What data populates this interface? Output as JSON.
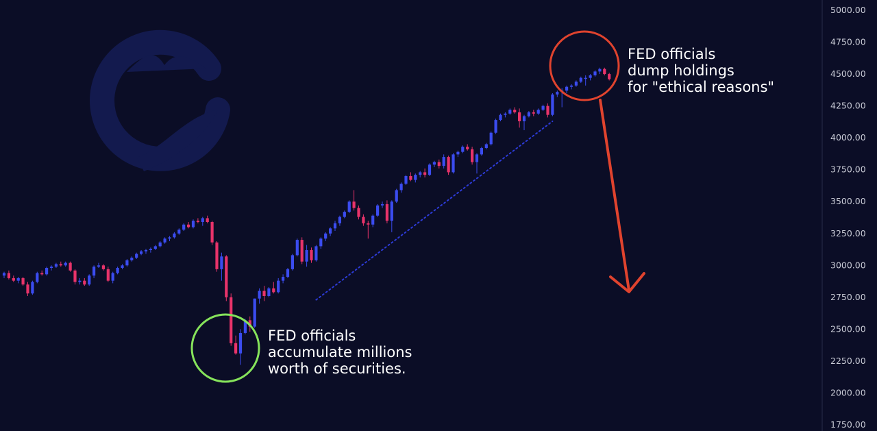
{
  "chart_data": {
    "type": "candlestick",
    "y_axis": {
      "position": "right",
      "range": [
        1750,
        5000
      ],
      "ticks": [
        "5000.00",
        "4750.00",
        "4500.00",
        "4250.00",
        "4000.00",
        "3750.00",
        "3500.00",
        "3250.00",
        "3000.00",
        "2750.00",
        "2500.00",
        "2250.00",
        "2000.00",
        "1750.00"
      ]
    },
    "colors": {
      "background": "#0b0d26",
      "up": "#3b4cf0",
      "down": "#e8336a",
      "trendline": "#2d3bd8",
      "circle_low": "#86e35b",
      "circle_high": "#e0432e",
      "arrow": "#e0432e",
      "logo": "#131a4e"
    },
    "candles": [
      [
        2920,
        2950,
        2900,
        2940
      ],
      [
        2940,
        2960,
        2890,
        2900
      ],
      [
        2900,
        2920,
        2870,
        2880
      ],
      [
        2880,
        2910,
        2860,
        2900
      ],
      [
        2900,
        2910,
        2840,
        2850
      ],
      [
        2850,
        2870,
        2760,
        2780
      ],
      [
        2780,
        2880,
        2770,
        2870
      ],
      [
        2870,
        2950,
        2860,
        2940
      ],
      [
        2940,
        2960,
        2920,
        2930
      ],
      [
        2930,
        2990,
        2920,
        2980
      ],
      [
        2980,
        3000,
        2960,
        2990
      ],
      [
        2990,
        3020,
        2980,
        3010
      ],
      [
        3010,
        3030,
        2990,
        3000
      ],
      [
        3000,
        3030,
        2990,
        3020
      ],
      [
        3020,
        3030,
        2950,
        2960
      ],
      [
        2960,
        2970,
        2850,
        2870
      ],
      [
        2870,
        2900,
        2850,
        2880
      ],
      [
        2880,
        2900,
        2840,
        2850
      ],
      [
        2850,
        2930,
        2840,
        2920
      ],
      [
        2920,
        3000,
        2900,
        2990
      ],
      [
        2990,
        3020,
        2980,
        3000
      ],
      [
        3000,
        3010,
        2960,
        2970
      ],
      [
        2970,
        2990,
        2870,
        2880
      ],
      [
        2880,
        2950,
        2860,
        2940
      ],
      [
        2940,
        2990,
        2930,
        2980
      ],
      [
        2980,
        3010,
        2970,
        3000
      ],
      [
        3000,
        3050,
        2990,
        3040
      ],
      [
        3040,
        3070,
        3030,
        3060
      ],
      [
        3060,
        3100,
        3050,
        3090
      ],
      [
        3090,
        3120,
        3080,
        3110
      ],
      [
        3110,
        3130,
        3090,
        3120
      ],
      [
        3120,
        3140,
        3100,
        3130
      ],
      [
        3130,
        3160,
        3120,
        3150
      ],
      [
        3150,
        3190,
        3140,
        3180
      ],
      [
        3180,
        3220,
        3170,
        3210
      ],
      [
        3210,
        3230,
        3190,
        3220
      ],
      [
        3220,
        3260,
        3210,
        3250
      ],
      [
        3250,
        3290,
        3240,
        3280
      ],
      [
        3280,
        3330,
        3270,
        3320
      ],
      [
        3320,
        3340,
        3290,
        3300
      ],
      [
        3300,
        3360,
        3290,
        3350
      ],
      [
        3350,
        3370,
        3330,
        3340
      ],
      [
        3340,
        3380,
        3310,
        3370
      ],
      [
        3370,
        3390,
        3330,
        3340
      ],
      [
        3340,
        3350,
        3160,
        3180
      ],
      [
        3180,
        3190,
        2950,
        2970
      ],
      [
        2970,
        3100,
        2880,
        3070
      ],
      [
        3070,
        3080,
        2720,
        2750
      ],
      [
        2750,
        2780,
        2370,
        2390
      ],
      [
        2390,
        2450,
        2300,
        2310
      ],
      [
        2310,
        2500,
        2220,
        2470
      ],
      [
        2470,
        2580,
        2460,
        2570
      ],
      [
        2570,
        2600,
        2480,
        2520
      ],
      [
        2520,
        2740,
        2510,
        2740
      ],
      [
        2740,
        2820,
        2700,
        2800
      ],
      [
        2800,
        2840,
        2720,
        2760
      ],
      [
        2760,
        2830,
        2750,
        2820
      ],
      [
        2820,
        2870,
        2780,
        2790
      ],
      [
        2790,
        2900,
        2780,
        2880
      ],
      [
        2880,
        2930,
        2860,
        2910
      ],
      [
        2910,
        2980,
        2900,
        2970
      ],
      [
        2970,
        3090,
        2960,
        3080
      ],
      [
        3080,
        3210,
        3070,
        3200
      ],
      [
        3200,
        3220,
        3010,
        3030
      ],
      [
        3030,
        3160,
        2990,
        3120
      ],
      [
        3120,
        3140,
        3020,
        3040
      ],
      [
        3040,
        3160,
        3030,
        3150
      ],
      [
        3150,
        3220,
        3130,
        3210
      ],
      [
        3210,
        3260,
        3190,
        3250
      ],
      [
        3250,
        3300,
        3230,
        3290
      ],
      [
        3290,
        3350,
        3270,
        3330
      ],
      [
        3330,
        3390,
        3310,
        3380
      ],
      [
        3380,
        3430,
        3370,
        3420
      ],
      [
        3420,
        3510,
        3410,
        3500
      ],
      [
        3500,
        3590,
        3430,
        3450
      ],
      [
        3450,
        3470,
        3360,
        3380
      ],
      [
        3380,
        3400,
        3310,
        3330
      ],
      [
        3330,
        3350,
        3210,
        3320
      ],
      [
        3320,
        3400,
        3300,
        3390
      ],
      [
        3390,
        3480,
        3380,
        3470
      ],
      [
        3470,
        3500,
        3450,
        3480
      ],
      [
        3480,
        3510,
        3330,
        3350
      ],
      [
        3350,
        3510,
        3260,
        3500
      ],
      [
        3500,
        3600,
        3490,
        3590
      ],
      [
        3590,
        3650,
        3570,
        3640
      ],
      [
        3640,
        3710,
        3630,
        3700
      ],
      [
        3700,
        3730,
        3660,
        3670
      ],
      [
        3670,
        3720,
        3650,
        3710
      ],
      [
        3710,
        3740,
        3690,
        3730
      ],
      [
        3730,
        3760,
        3690,
        3710
      ],
      [
        3710,
        3800,
        3700,
        3790
      ],
      [
        3790,
        3820,
        3770,
        3810
      ],
      [
        3810,
        3830,
        3760,
        3780
      ],
      [
        3780,
        3870,
        3760,
        3850
      ],
      [
        3850,
        3860,
        3710,
        3730
      ],
      [
        3730,
        3880,
        3720,
        3870
      ],
      [
        3870,
        3900,
        3850,
        3890
      ],
      [
        3890,
        3940,
        3880,
        3930
      ],
      [
        3930,
        3950,
        3900,
        3910
      ],
      [
        3910,
        3930,
        3790,
        3810
      ],
      [
        3810,
        3880,
        3720,
        3870
      ],
      [
        3870,
        3930,
        3860,
        3920
      ],
      [
        3920,
        3960,
        3910,
        3950
      ],
      [
        3950,
        4050,
        3940,
        4040
      ],
      [
        4040,
        4150,
        4030,
        4140
      ],
      [
        4140,
        4190,
        4130,
        4180
      ],
      [
        4180,
        4200,
        4160,
        4190
      ],
      [
        4190,
        4230,
        4180,
        4220
      ],
      [
        4220,
        4240,
        4190,
        4200
      ],
      [
        4200,
        4230,
        4080,
        4130
      ],
      [
        4130,
        4180,
        4060,
        4170
      ],
      [
        4170,
        4210,
        4160,
        4200
      ],
      [
        4200,
        4220,
        4170,
        4190
      ],
      [
        4190,
        4230,
        4180,
        4220
      ],
      [
        4220,
        4260,
        4210,
        4250
      ],
      [
        4250,
        4270,
        4160,
        4180
      ],
      [
        4180,
        4350,
        4170,
        4340
      ],
      [
        4340,
        4370,
        4320,
        4360
      ],
      [
        4360,
        4390,
        4240,
        4370
      ],
      [
        4370,
        4410,
        4350,
        4400
      ],
      [
        4400,
        4420,
        4380,
        4410
      ],
      [
        4410,
        4450,
        4400,
        4440
      ],
      [
        4440,
        4480,
        4430,
        4470
      ],
      [
        4470,
        4490,
        4410,
        4470
      ],
      [
        4470,
        4500,
        4450,
        4490
      ],
      [
        4490,
        4530,
        4480,
        4520
      ],
      [
        4520,
        4550,
        4500,
        4540
      ],
      [
        4540,
        4550,
        4490,
        4500
      ],
      [
        4500,
        4510,
        4450,
        4460
      ]
    ],
    "trendline": {
      "from": [
        66,
        2730
      ],
      "to": [
        116,
        4130
      ]
    },
    "annotations": [
      {
        "name": "accumulate",
        "lines": [
          "FED officials",
          "accumulate millions",
          "worth of securities."
        ]
      },
      {
        "name": "dump",
        "lines": [
          "FED officials",
          "dump holdings",
          "for \"ethical reasons\""
        ]
      }
    ]
  }
}
